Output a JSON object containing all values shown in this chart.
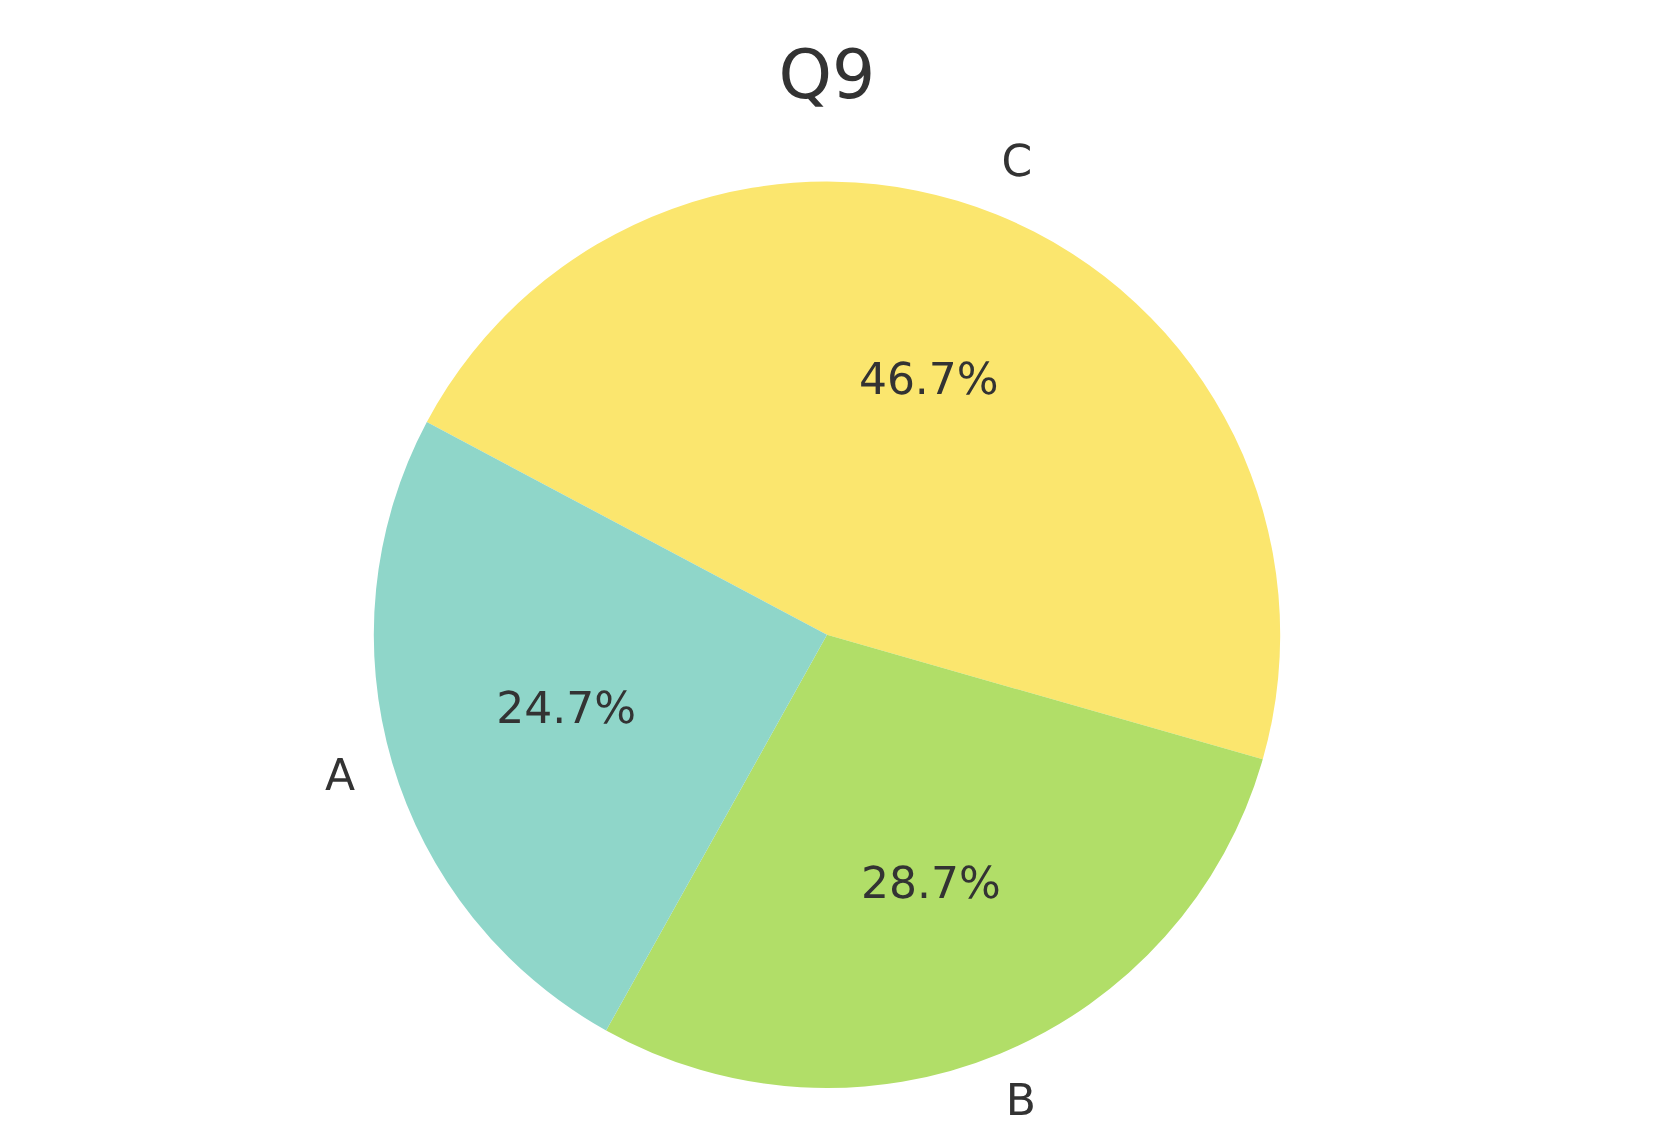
{
  "chart_data": {
    "type": "pie",
    "title": "Q9",
    "categories": [
      "A",
      "B",
      "C"
    ],
    "values": [
      24.7,
      28.7,
      46.7
    ],
    "value_labels": [
      "24.7%",
      "28.7%",
      "46.7%"
    ],
    "colors": [
      "#8fd6c9",
      "#b1de68",
      "#fbe66e"
    ],
    "legend": false
  }
}
